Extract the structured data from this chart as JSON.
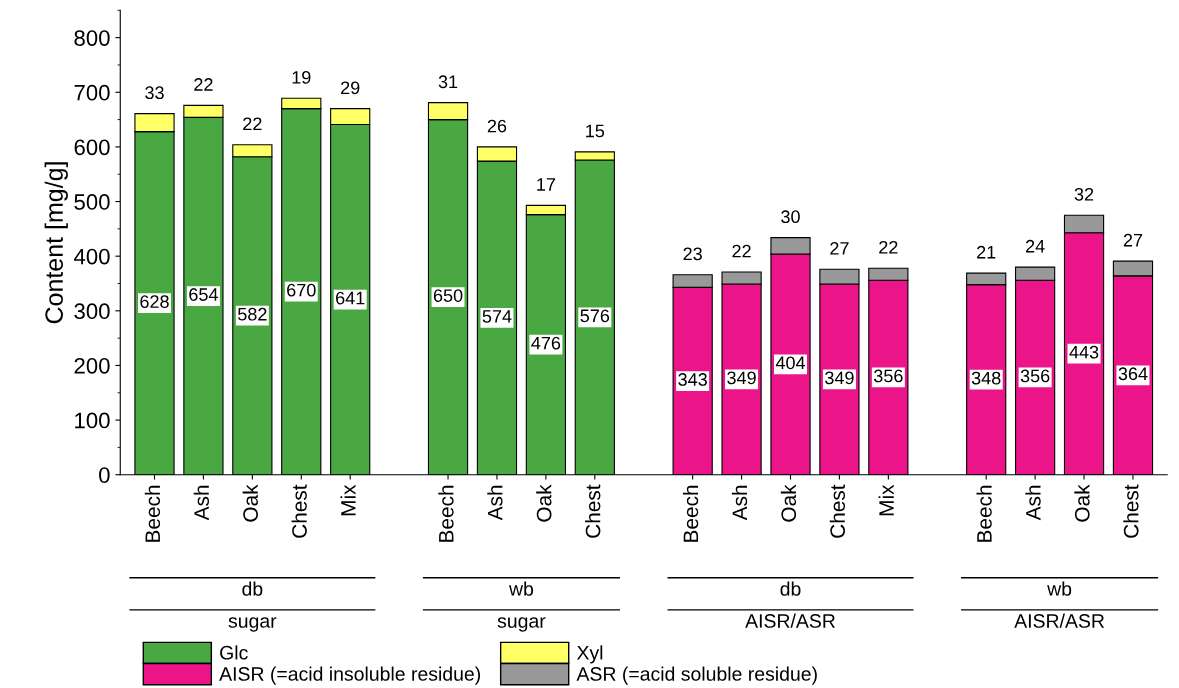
{
  "chart_data": {
    "type": "bar",
    "stacked": true,
    "ylabel": "Content [mg/g]",
    "categories": [
      "Beech",
      "Ash",
      "Oak",
      "Chest",
      "Mix",
      null,
      "Beech",
      "Ash",
      "Oak",
      "Chest",
      null,
      "Beech",
      "Ash",
      "Oak",
      "Chest",
      "Mix",
      null,
      "Beech",
      "Ash",
      "Oak",
      "Chest"
    ],
    "series": [
      {
        "name": "Glc",
        "color": "#4aa843",
        "values": [
          628,
          654,
          582,
          670,
          641,
          null,
          650,
          574,
          476,
          576,
          null,
          null,
          null,
          null,
          null,
          null,
          null,
          null,
          null,
          null,
          null
        ]
      },
      {
        "name": "Xyl",
        "color": "#ffff66",
        "values": [
          33,
          22,
          22,
          19,
          29,
          null,
          31,
          26,
          17,
          15,
          null,
          null,
          null,
          null,
          null,
          null,
          null,
          null,
          null,
          null,
          null
        ]
      },
      {
        "name": "AISR (=acid insoluble residue)",
        "color": "#ec1489",
        "values": [
          null,
          null,
          null,
          null,
          null,
          null,
          null,
          null,
          null,
          null,
          null,
          343,
          349,
          404,
          349,
          356,
          null,
          348,
          356,
          443,
          364
        ]
      },
      {
        "name": "ASR (=acid soluble residue)",
        "color": "#999999",
        "values": [
          null,
          null,
          null,
          null,
          null,
          null,
          null,
          null,
          null,
          null,
          null,
          23,
          22,
          30,
          27,
          22,
          null,
          21,
          24,
          32,
          27
        ]
      }
    ],
    "annotations": [
      "db",
      "sugar",
      "wb",
      "sugar",
      "db",
      "AISR/ASR",
      "wb",
      "AISR/ASR"
    ],
    "ylim": [
      0,
      850
    ],
    "yticks": [
      0,
      100,
      200,
      300,
      400,
      500,
      600,
      700,
      800
    ],
    "data_labels": true,
    "legend": "bottom",
    "grid": false
  }
}
